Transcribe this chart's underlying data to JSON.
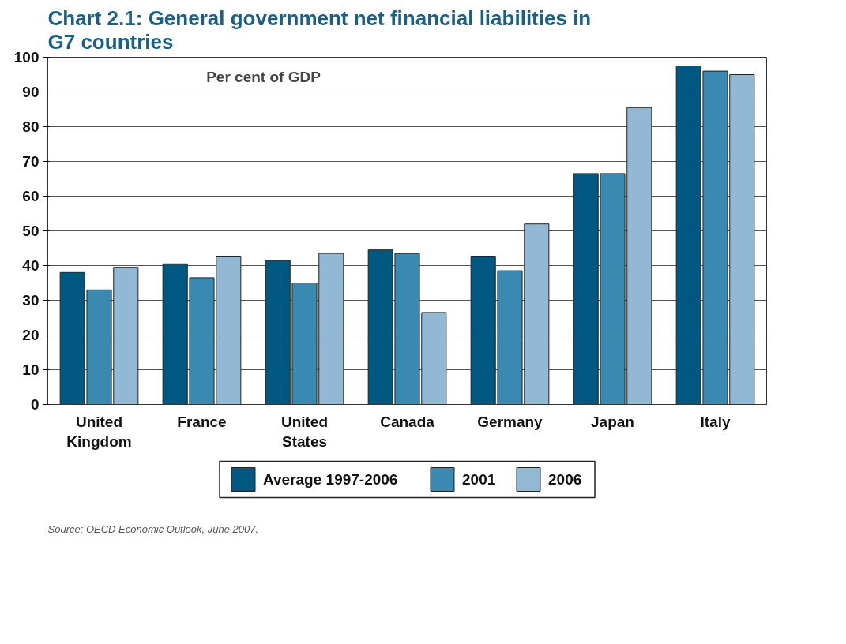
{
  "chart_data": {
    "type": "bar",
    "title": "Chart 2.1: General government net financial liabilities in G7 countries",
    "categories": [
      "United Kingdom",
      "France",
      "United States",
      "Canada",
      "Germany",
      "Japan",
      "Italy"
    ],
    "series": [
      {
        "name": "Average 1997-2006",
        "color": "#00577f",
        "values": [
          38,
          40.5,
          41.5,
          44.5,
          42.5,
          66.5,
          97.5
        ]
      },
      {
        "name": "2001",
        "color": "#3a89b0",
        "values": [
          33,
          36.5,
          35,
          43.5,
          38.5,
          66.5,
          96
        ]
      },
      {
        "name": "2006",
        "color": "#93b8d3",
        "values": [
          39.5,
          42.5,
          43.5,
          26.5,
          52,
          85.5,
          95
        ]
      }
    ],
    "ylim": [
      0,
      100
    ],
    "yticks": [
      0,
      10,
      20,
      30,
      40,
      50,
      60,
      70,
      80,
      90,
      100
    ],
    "grid": "y",
    "legend": "bottom",
    "annotations": [
      "Per cent of GDP",
      "Source: OECD Economic Outlook, June 2007."
    ]
  }
}
